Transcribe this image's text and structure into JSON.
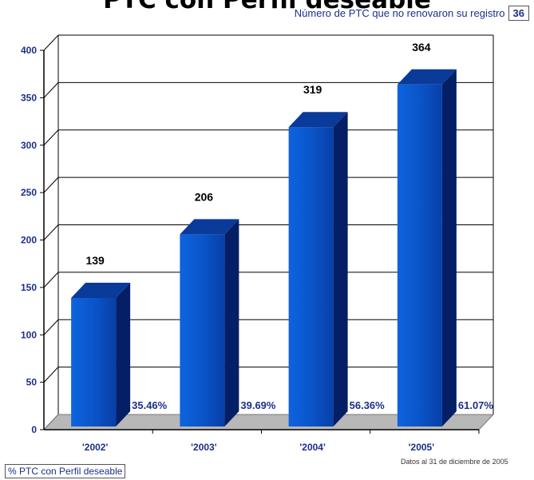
{
  "header": {
    "title": "PTC con Perfil deseable",
    "ptc_note_label": "Número de PTC que no renovaron su registro",
    "ptc_note_value": "36"
  },
  "footnote": "Datos al 31 de diciembre de 2005",
  "legend_label": "% PTC con Perfil deseable",
  "colors": {
    "bar_front": "#0a55c9",
    "bar_side": "#041f66",
    "bar_top": "#0a3a9a",
    "axis_text": "#1c2f8a",
    "floor": "#b8b8b8"
  },
  "chart_data": {
    "type": "bar",
    "categories": [
      "'2002'",
      "'2003'",
      "'2004'",
      "'2005'"
    ],
    "values": [
      139,
      206,
      319,
      364
    ],
    "value_labels": [
      "139",
      "206",
      "319",
      "364"
    ],
    "percent_labels": [
      "35.46%",
      "39.69%",
      "56.36%",
      "61.07%"
    ],
    "ylim": [
      0,
      400
    ],
    "yticks": [
      "0",
      "50",
      "100",
      "150",
      "200",
      "250",
      "300",
      "350",
      "400"
    ],
    "grid": true,
    "style": "3d"
  }
}
